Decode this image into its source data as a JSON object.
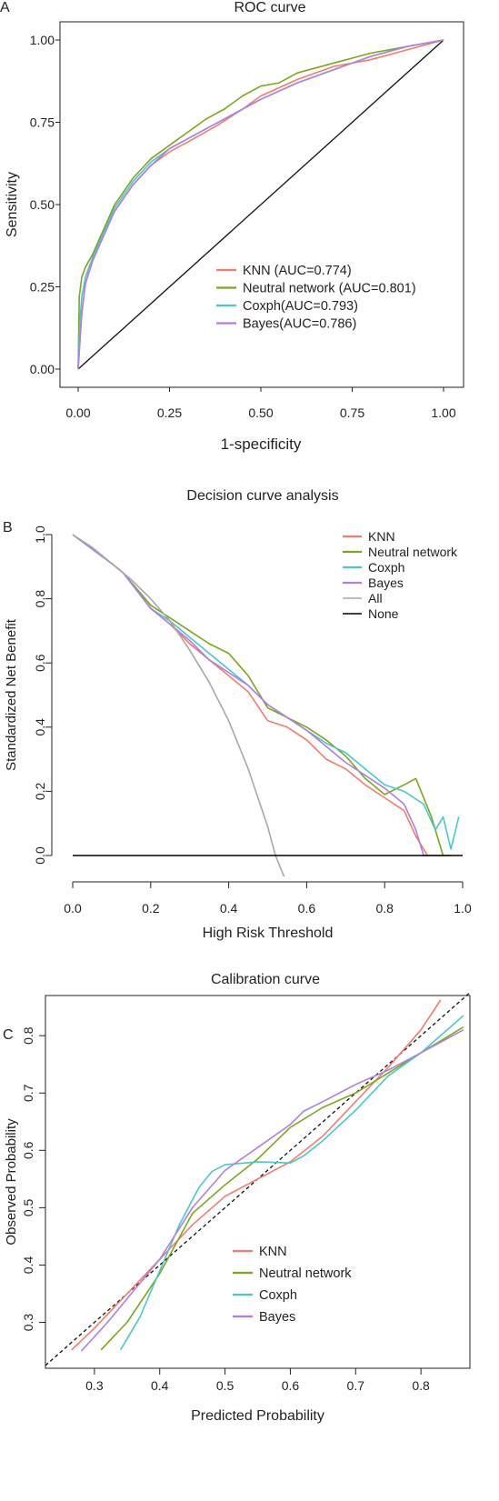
{
  "colors": {
    "KNN": "#f07d6e",
    "Neutral network": "#7da61e",
    "Coxph": "#4dc6c8",
    "Bayes": "#b07fe0",
    "All": "#a8a8a8",
    "None": "#000000"
  },
  "chart_data": [
    {
      "panel": "A",
      "type": "line",
      "title": "ROC curve",
      "xlabel": "1-specificity",
      "ylabel": "Sensitivity",
      "xlim": [
        0,
        1
      ],
      "ylim": [
        0,
        1
      ],
      "xticks": [
        "0.00",
        "0.25",
        "0.50",
        "0.75",
        "1.00"
      ],
      "yticks": [
        "0.00",
        "0.25",
        "0.50",
        "0.75",
        "1.00"
      ],
      "legend_position": "bottom-right",
      "legend": [
        "KNN (AUC=0.774)",
        "Neutral network (AUC=0.801)",
        "Coxph(AUC=0.793)",
        "Bayes(AUC=0.786)"
      ],
      "reference_line": [
        [
          0,
          0
        ],
        [
          1,
          1
        ]
      ],
      "series": [
        {
          "name": "KNN",
          "x": [
            0,
            0.01,
            0.02,
            0.04,
            0.06,
            0.1,
            0.15,
            0.2,
            0.25,
            0.3,
            0.38,
            0.45,
            0.5,
            0.6,
            0.7,
            0.8,
            0.9,
            1.0
          ],
          "y": [
            0,
            0.17,
            0.26,
            0.34,
            0.4,
            0.48,
            0.56,
            0.62,
            0.66,
            0.69,
            0.74,
            0.79,
            0.83,
            0.88,
            0.92,
            0.94,
            0.97,
            1.0
          ]
        },
        {
          "name": "Neutral network",
          "x": [
            0,
            0.003,
            0.01,
            0.02,
            0.04,
            0.06,
            0.1,
            0.15,
            0.2,
            0.25,
            0.3,
            0.35,
            0.4,
            0.45,
            0.5,
            0.55,
            0.6,
            0.7,
            0.8,
            0.9,
            1.0
          ],
          "y": [
            0,
            0.22,
            0.28,
            0.31,
            0.35,
            0.4,
            0.5,
            0.58,
            0.64,
            0.68,
            0.72,
            0.76,
            0.79,
            0.83,
            0.86,
            0.87,
            0.9,
            0.93,
            0.96,
            0.98,
            1.0
          ]
        },
        {
          "name": "Coxph",
          "x": [
            0,
            0.005,
            0.01,
            0.02,
            0.04,
            0.06,
            0.1,
            0.15,
            0.2,
            0.25,
            0.3,
            0.35,
            0.4,
            0.45,
            0.5,
            0.6,
            0.7,
            0.8,
            0.9,
            1.0
          ],
          "y": [
            0,
            0.15,
            0.22,
            0.28,
            0.34,
            0.39,
            0.49,
            0.57,
            0.63,
            0.67,
            0.7,
            0.73,
            0.76,
            0.79,
            0.82,
            0.87,
            0.91,
            0.95,
            0.98,
            1.0
          ]
        },
        {
          "name": "Bayes",
          "x": [
            0,
            0.005,
            0.01,
            0.02,
            0.04,
            0.06,
            0.1,
            0.15,
            0.2,
            0.25,
            0.3,
            0.35,
            0.4,
            0.45,
            0.5,
            0.6,
            0.7,
            0.8,
            0.9,
            1.0
          ],
          "y": [
            0,
            0.09,
            0.17,
            0.26,
            0.33,
            0.38,
            0.48,
            0.56,
            0.62,
            0.67,
            0.7,
            0.73,
            0.76,
            0.79,
            0.82,
            0.87,
            0.91,
            0.95,
            0.98,
            1.0
          ]
        }
      ]
    },
    {
      "panel": "B",
      "type": "line",
      "title": "Decision curve analysis",
      "xlabel": "High Risk Threshold",
      "ylabel": "Standardized Net Benefit",
      "xlim": [
        0,
        1
      ],
      "ylim": [
        0,
        1
      ],
      "xticks": [
        "0.0",
        "0.2",
        "0.4",
        "0.6",
        "0.8",
        "1.0"
      ],
      "yticks": [
        "0.0",
        "0.2",
        "0.4",
        "0.6",
        "0.8",
        "1.0"
      ],
      "legend_position": "top-right",
      "legend": [
        "KNN",
        "Neutral network",
        "Coxph",
        "Bayes",
        "All",
        "None"
      ],
      "series": [
        {
          "name": "KNN",
          "x": [
            0,
            0.1,
            0.13,
            0.2,
            0.25,
            0.3,
            0.35,
            0.4,
            0.45,
            0.5,
            0.55,
            0.6,
            0.65,
            0.7,
            0.75,
            0.8,
            0.85,
            0.88,
            0.9,
            0.91
          ],
          "y": [
            1.0,
            0.91,
            0.88,
            0.77,
            0.72,
            0.66,
            0.61,
            0.56,
            0.51,
            0.42,
            0.4,
            0.36,
            0.3,
            0.27,
            0.22,
            0.18,
            0.14,
            0.06,
            0.02,
            0.0
          ]
        },
        {
          "name": "Neutral network",
          "x": [
            0,
            0.1,
            0.13,
            0.2,
            0.25,
            0.3,
            0.35,
            0.4,
            0.45,
            0.5,
            0.55,
            0.6,
            0.65,
            0.7,
            0.75,
            0.8,
            0.85,
            0.88,
            0.92,
            0.95
          ],
          "y": [
            1.0,
            0.91,
            0.88,
            0.78,
            0.74,
            0.7,
            0.66,
            0.63,
            0.56,
            0.46,
            0.43,
            0.4,
            0.36,
            0.31,
            0.24,
            0.19,
            0.22,
            0.24,
            0.12,
            0.0
          ]
        },
        {
          "name": "Coxph",
          "x": [
            0,
            0.1,
            0.13,
            0.2,
            0.25,
            0.3,
            0.35,
            0.4,
            0.45,
            0.5,
            0.55,
            0.6,
            0.65,
            0.7,
            0.75,
            0.8,
            0.85,
            0.9,
            0.93,
            0.95,
            0.97,
            0.99
          ],
          "y": [
            1.0,
            0.91,
            0.88,
            0.77,
            0.73,
            0.68,
            0.63,
            0.58,
            0.53,
            0.47,
            0.43,
            0.39,
            0.35,
            0.32,
            0.27,
            0.22,
            0.2,
            0.16,
            0.08,
            0.12,
            0.02,
            0.12
          ]
        },
        {
          "name": "Bayes",
          "x": [
            0,
            0.1,
            0.13,
            0.2,
            0.25,
            0.3,
            0.35,
            0.4,
            0.45,
            0.5,
            0.55,
            0.6,
            0.65,
            0.7,
            0.75,
            0.8,
            0.85,
            0.88,
            0.9,
            0.92,
            0.94,
            0.96,
            0.97
          ],
          "y": [
            1.0,
            0.91,
            0.88,
            0.77,
            0.72,
            0.67,
            0.61,
            0.57,
            0.53,
            0.47,
            0.43,
            0.39,
            0.34,
            0.29,
            0.25,
            0.21,
            0.16,
            0.08,
            0.0,
            0.0,
            0.0,
            0.0,
            0.0
          ]
        },
        {
          "name": "All",
          "x": [
            0,
            0.05,
            0.1,
            0.15,
            0.2,
            0.25,
            0.3,
            0.35,
            0.4,
            0.45,
            0.5,
            0.52,
            0.54,
            0.55
          ],
          "y": [
            1.0,
            0.96,
            0.91,
            0.86,
            0.8,
            0.73,
            0.64,
            0.54,
            0.42,
            0.27,
            0.09,
            0.0,
            -0.06,
            -0.09
          ]
        },
        {
          "name": "None",
          "x": [
            0,
            1
          ],
          "y": [
            0,
            0
          ]
        }
      ]
    },
    {
      "panel": "C",
      "type": "line",
      "title": "Calibration curve",
      "xlabel": "Predicted Probability",
      "ylabel": "Observed Probability",
      "xlim": [
        0.225,
        0.875
      ],
      "ylim": [
        0.22,
        0.87
      ],
      "xticks": [
        "0.3",
        "0.4",
        "0.5",
        "0.6",
        "0.7",
        "0.8"
      ],
      "yticks": [
        "0.3",
        "0.4",
        "0.5",
        "0.6",
        "0.7",
        "0.8"
      ],
      "legend_position": "bottom-right",
      "legend": [
        "KNN",
        "Neutral network",
        "Coxph",
        "Bayes"
      ],
      "reference_line": [
        [
          0.225,
          0.225
        ],
        [
          0.875,
          0.875
        ]
      ],
      "series": [
        {
          "name": "KNN",
          "x": [
            0.265,
            0.3,
            0.35,
            0.4,
            0.45,
            0.5,
            0.55,
            0.6,
            0.65,
            0.7,
            0.75,
            0.8,
            0.83
          ],
          "y": [
            0.252,
            0.29,
            0.35,
            0.41,
            0.47,
            0.52,
            0.55,
            0.58,
            0.625,
            0.685,
            0.745,
            0.81,
            0.862
          ]
        },
        {
          "name": "Neutral network",
          "x": [
            0.31,
            0.35,
            0.4,
            0.45,
            0.5,
            0.55,
            0.6,
            0.65,
            0.7,
            0.75,
            0.8,
            0.865
          ],
          "y": [
            0.252,
            0.3,
            0.385,
            0.49,
            0.54,
            0.585,
            0.64,
            0.675,
            0.7,
            0.735,
            0.77,
            0.815
          ]
        },
        {
          "name": "Coxph",
          "x": [
            0.34,
            0.37,
            0.4,
            0.43,
            0.46,
            0.48,
            0.5,
            0.55,
            0.6,
            0.62,
            0.65,
            0.7,
            0.75,
            0.8,
            0.865
          ],
          "y": [
            0.252,
            0.31,
            0.39,
            0.47,
            0.535,
            0.563,
            0.575,
            0.58,
            0.578,
            0.59,
            0.617,
            0.67,
            0.73,
            0.77,
            0.835
          ]
        },
        {
          "name": "Bayes",
          "x": [
            0.28,
            0.32,
            0.36,
            0.4,
            0.45,
            0.5,
            0.55,
            0.6,
            0.62,
            0.65,
            0.7,
            0.75,
            0.8,
            0.865
          ],
          "y": [
            0.25,
            0.3,
            0.355,
            0.41,
            0.5,
            0.565,
            0.605,
            0.645,
            0.668,
            0.685,
            0.715,
            0.74,
            0.77,
            0.81
          ]
        }
      ]
    }
  ],
  "panels": {
    "A": {
      "letter": "A"
    },
    "B": {
      "letter": "B"
    },
    "C": {
      "letter": "C"
    }
  }
}
